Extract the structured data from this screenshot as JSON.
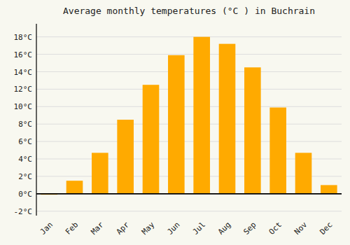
{
  "chart_data": {
    "type": "bar",
    "title": "Average monthly temperatures (°C ) in Buchrain",
    "categories": [
      "Jan",
      "Feb",
      "Mar",
      "Apr",
      "May",
      "Jun",
      "Jul",
      "Aug",
      "Sep",
      "Oct",
      "Nov",
      "Dec"
    ],
    "values": [
      -0.1,
      1.5,
      4.7,
      8.5,
      12.5,
      15.9,
      18.0,
      17.2,
      14.5,
      9.9,
      4.7,
      1.0
    ],
    "color": "#FFAA00",
    "ylim": [
      -2.5,
      19.5
    ],
    "yticks": [
      {
        "value": -2,
        "label": "-2°C"
      },
      {
        "value": 0,
        "label": "0°C"
      },
      {
        "value": 2,
        "label": "2°C"
      },
      {
        "value": 4,
        "label": "4°C"
      },
      {
        "value": 6,
        "label": "6°C"
      },
      {
        "value": 8,
        "label": "8°C"
      },
      {
        "value": 10,
        "label": "10°C"
      },
      {
        "value": 12,
        "label": "12°C"
      },
      {
        "value": 14,
        "label": "14°C"
      },
      {
        "value": 16,
        "label": "16°C"
      },
      {
        "value": 18,
        "label": "18°C"
      }
    ],
    "grid": true
  }
}
